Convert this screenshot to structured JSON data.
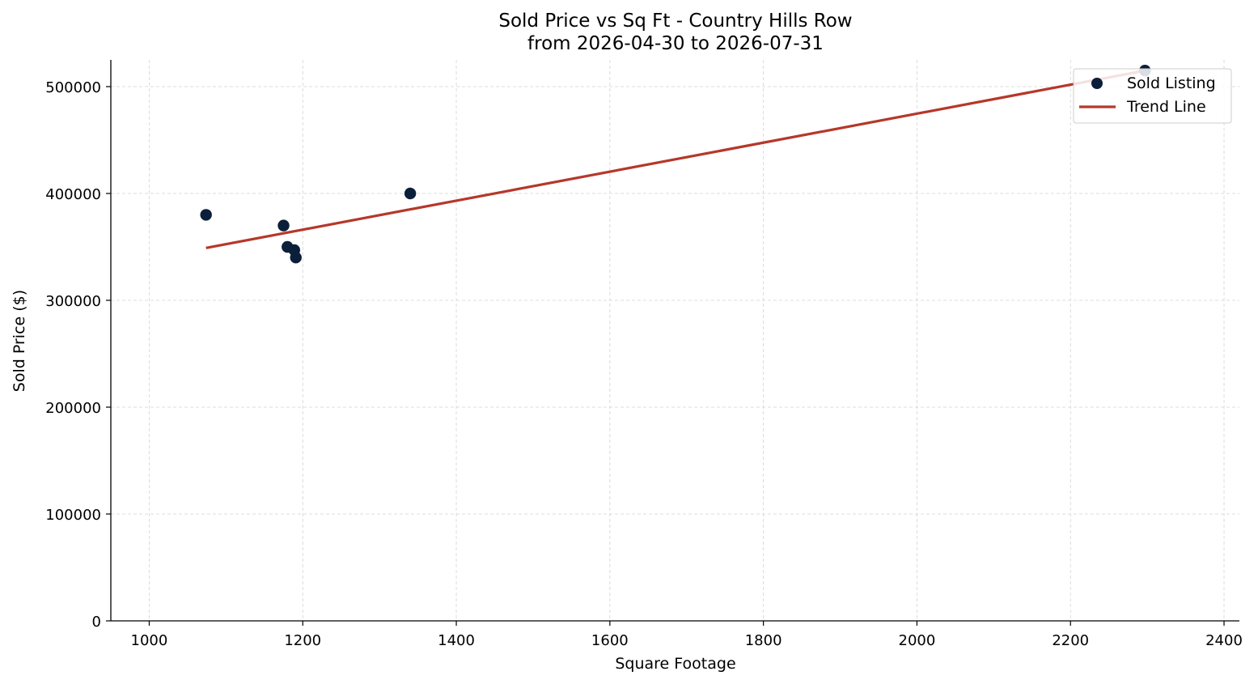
{
  "colors": {
    "points": "#0b1f3a",
    "trend": "#b5382a",
    "grid": "#d3d3d3",
    "legend_border": "#cccccc"
  },
  "chart_data": {
    "type": "scatter",
    "title_line1": "Sold Price vs Sq Ft - Country Hills Row",
    "title_line2": "from 2026-04-30 to 2026-07-31",
    "xlabel": "Square Footage",
    "ylabel": "Sold Price ($)",
    "xlim": [
      950,
      2420
    ],
    "ylim": [
      0,
      525000
    ],
    "x_ticks": [
      1000,
      1200,
      1400,
      1600,
      1800,
      2000,
      2200,
      2400
    ],
    "y_ticks": [
      0,
      100000,
      200000,
      300000,
      400000,
      500000
    ],
    "x_tick_labels": [
      "1000",
      "1200",
      "1400",
      "1600",
      "1800",
      "2000",
      "2200",
      "2400"
    ],
    "y_tick_labels": [
      "0",
      "100000",
      "200000",
      "300000",
      "400000",
      "500000"
    ],
    "grid": true,
    "legend_position": "top-right",
    "series": [
      {
        "name": "Sold Listing",
        "kind": "scatter",
        "points": [
          {
            "x": 1074,
            "y": 380000
          },
          {
            "x": 1175,
            "y": 370000
          },
          {
            "x": 1180,
            "y": 350000
          },
          {
            "x": 1189,
            "y": 347000
          },
          {
            "x": 1191,
            "y": 340000
          },
          {
            "x": 1340,
            "y": 400000
          },
          {
            "x": 2297,
            "y": 515000
          }
        ]
      },
      {
        "name": "Trend Line",
        "kind": "line",
        "points": [
          {
            "x": 1074,
            "y": 349000
          },
          {
            "x": 2297,
            "y": 515000
          }
        ]
      }
    ]
  }
}
